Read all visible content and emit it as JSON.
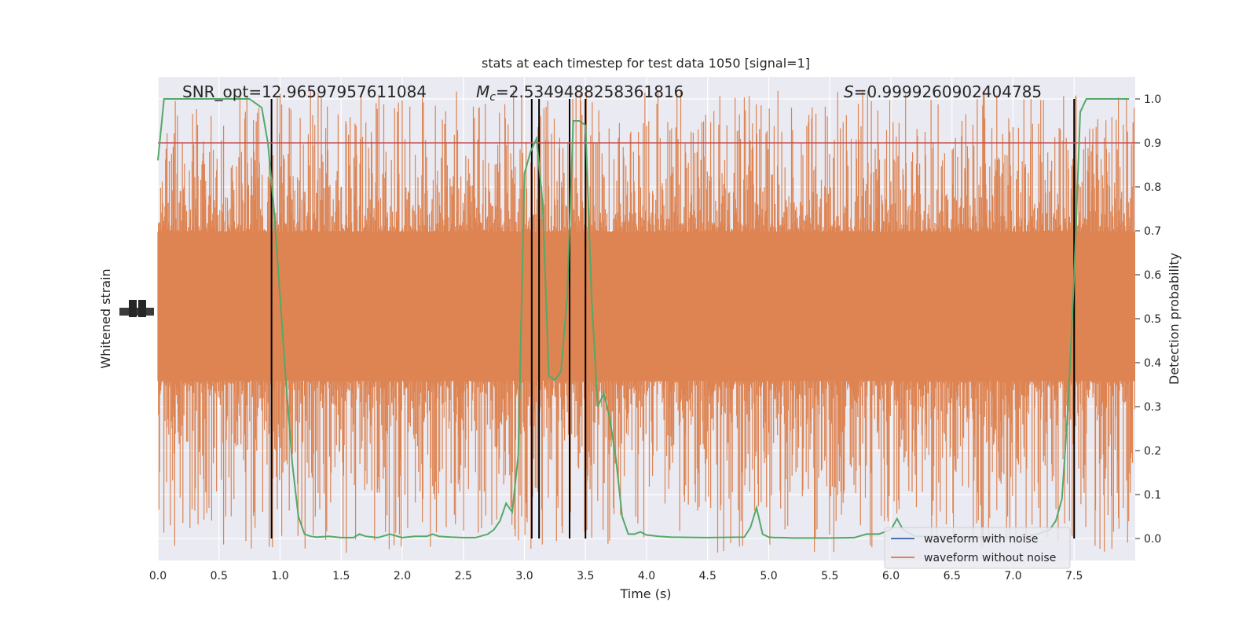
{
  "chart_data": {
    "type": "line",
    "title": "stats at each timestep for test data 1050 [signal=1]",
    "xlabel": "Time (s)",
    "ylabel_left": "Whitened strain",
    "ylabel_right": "Detection probability",
    "xlim": [
      0.0,
      8.0
    ],
    "ylim_right": [
      -0.05,
      1.05
    ],
    "x_ticks": [
      "0.0",
      "0.5",
      "1.0",
      "1.5",
      "2.0",
      "2.5",
      "3.0",
      "3.5",
      "4.0",
      "4.5",
      "5.0",
      "5.5",
      "6.0",
      "6.5",
      "7.0",
      "7.5"
    ],
    "y_ticks_right": [
      "0.0",
      "0.1",
      "0.2",
      "0.3",
      "0.4",
      "0.5",
      "0.6",
      "0.7",
      "0.8",
      "0.9",
      "1.0"
    ],
    "grid": true,
    "legend_position": "lower-right",
    "annotations": {
      "snr": "SNR_opt=12.96597957611084",
      "mc_symbol": "M",
      "mc_sub": "c",
      "mc_value": "=2.5349488258361816",
      "s_symbol": "S",
      "s_value": "=0.9999260902404785"
    },
    "threshold": 0.9,
    "vertical_lines": [
      0.93,
      3.06,
      3.12,
      3.37,
      3.5,
      7.5
    ],
    "series": [
      {
        "name": "waveform with noise",
        "color": "#4c72b0",
        "values": []
      },
      {
        "name": "waveform without noise",
        "color": "#dd8452",
        "note_visible": "dense noise band"
      },
      {
        "color": "#55a868",
        "x": [
          0.0,
          0.05,
          0.1,
          0.2,
          0.3,
          0.4,
          0.5,
          0.6,
          0.7,
          0.75,
          0.8,
          0.85,
          0.9,
          0.95,
          1.0,
          1.05,
          1.1,
          1.15,
          1.2,
          1.25,
          1.3,
          1.4,
          1.5,
          1.6,
          1.65,
          1.7,
          1.8,
          1.9,
          2.0,
          2.1,
          2.2,
          2.25,
          2.3,
          2.4,
          2.5,
          2.6,
          2.7,
          2.75,
          2.8,
          2.85,
          2.9,
          2.95,
          3.0,
          3.05,
          3.1,
          3.15,
          3.2,
          3.25,
          3.3,
          3.35,
          3.4,
          3.45,
          3.5,
          3.55,
          3.6,
          3.65,
          3.7,
          3.75,
          3.8,
          3.85,
          3.9,
          3.95,
          4.0,
          4.1,
          4.2,
          4.5,
          4.8,
          4.85,
          4.9,
          4.95,
          5.0,
          5.05,
          5.1,
          5.2,
          5.3,
          5.5,
          5.7,
          5.8,
          5.9,
          6.0,
          6.05,
          6.1,
          6.2,
          6.3,
          6.4,
          6.5,
          6.6,
          6.7,
          6.8,
          6.9,
          7.0,
          7.1,
          7.2,
          7.3,
          7.35,
          7.4,
          7.45,
          7.5,
          7.55,
          7.6,
          7.65,
          7.7,
          7.8,
          7.95
        ],
        "y": [
          0.86,
          1.0,
          1.0,
          1.0,
          1.0,
          1.0,
          1.0,
          1.0,
          1.0,
          1.0,
          0.99,
          0.98,
          0.9,
          0.75,
          0.55,
          0.35,
          0.17,
          0.05,
          0.01,
          0.005,
          0.003,
          0.005,
          0.002,
          0.002,
          0.01,
          0.005,
          0.002,
          0.01,
          0.002,
          0.005,
          0.005,
          0.01,
          0.005,
          0.003,
          0.002,
          0.002,
          0.01,
          0.02,
          0.04,
          0.08,
          0.06,
          0.19,
          0.83,
          0.88,
          0.91,
          0.76,
          0.37,
          0.36,
          0.38,
          0.55,
          0.95,
          0.95,
          0.94,
          0.55,
          0.3,
          0.33,
          0.27,
          0.18,
          0.05,
          0.01,
          0.01,
          0.015,
          0.008,
          0.005,
          0.003,
          0.002,
          0.003,
          0.025,
          0.07,
          0.01,
          0.003,
          0.002,
          0.002,
          0.001,
          0.001,
          0.001,
          0.002,
          0.01,
          0.01,
          0.02,
          0.045,
          0.02,
          0.005,
          0.005,
          0.005,
          0.003,
          0.003,
          0.003,
          0.003,
          0.003,
          0.003,
          0.005,
          0.01,
          0.02,
          0.04,
          0.09,
          0.3,
          0.6,
          0.97,
          1.0,
          1.0,
          1.0,
          1.0,
          1.0
        ]
      }
    ],
    "colors": {
      "background": "#eaeaf2",
      "threshold": "#c44e52",
      "vline": "#000000"
    }
  }
}
